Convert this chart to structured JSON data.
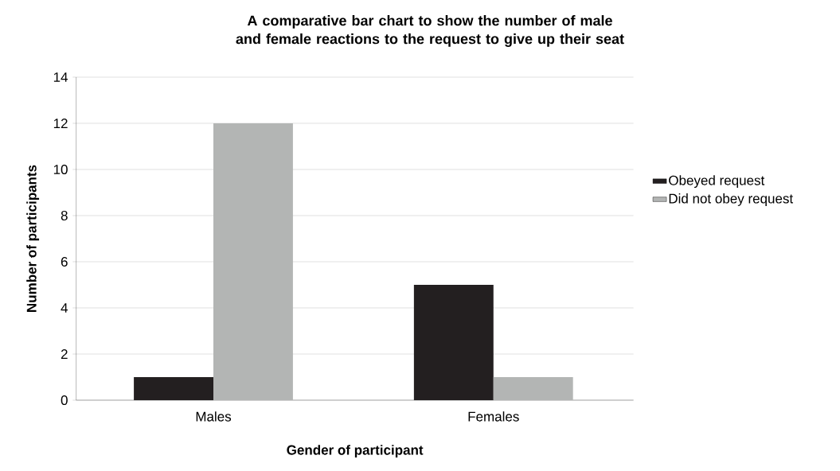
{
  "chart_data": {
    "type": "bar",
    "title": "A comparative bar chart to show the number of male and female reactions to the request to give up their seat",
    "xlabel": "Gender of participant",
    "ylabel": "Number of participants",
    "categories": [
      "Males",
      "Females"
    ],
    "series": [
      {
        "name": "Obeyed request",
        "color": "#231f20",
        "values": [
          1,
          5
        ]
      },
      {
        "name": "Did not obey request",
        "color": "#b3b5b4",
        "values": [
          12,
          1
        ]
      }
    ],
    "ylim": [
      0,
      14
    ],
    "yticks": [
      0,
      2,
      4,
      6,
      8,
      10,
      12,
      14
    ],
    "grid": "y",
    "legend": "right"
  }
}
